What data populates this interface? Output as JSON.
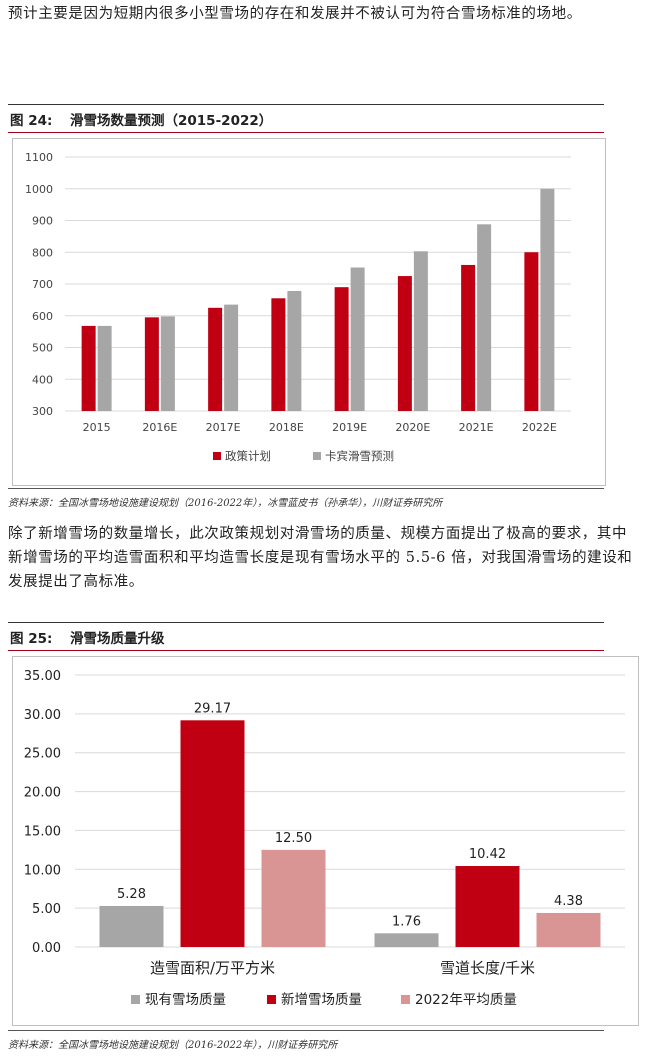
{
  "intro_text": "预计主要是因为短期内很多小型雪场的存在和发展并不被认可为符合雪场标准的场地。",
  "figure24": {
    "label": "图 24:",
    "title": "滑雪场数量预测（2015-2022）",
    "source": "资料来源：全国冰雪场地设施建设规划（2016-2022年），冰雪蓝皮书（孙承华），川财证券研究所",
    "chart_data": {
      "type": "bar",
      "categories": [
        "2015",
        "2016E",
        "2017E",
        "2018E",
        "2019E",
        "2020E",
        "2021E",
        "2022E"
      ],
      "series": [
        {
          "name": "政策计划",
          "values": [
            568,
            595,
            625,
            655,
            690,
            725,
            760,
            800
          ]
        },
        {
          "name": "卡宾滑雪预测",
          "values": [
            568,
            598,
            635,
            678,
            752,
            803,
            888,
            1000
          ]
        }
      ],
      "yticks": [
        "300",
        "400",
        "500",
        "600",
        "700",
        "800",
        "900",
        "1000",
        "1100"
      ],
      "ylim": [
        300,
        1100
      ],
      "grid": true,
      "legend_position": "bottom"
    }
  },
  "middle_text": "除了新增雪场的数量增长，此次政策规划对滑雪场的质量、规模方面提出了极高的要求，其中新增雪场的平均造雪面积和平均造雪长度是现有雪场水平的 5.5-6 倍，对我国滑雪场的建设和发展提出了高标准。",
  "figure25": {
    "label": "图 25:",
    "title": "滑雪场质量升级",
    "source": "资料来源：全国冰雪场地设施建设规划（2016-2022年），川财证券研究所",
    "chart_data": {
      "type": "bar",
      "categories": [
        "造雪面积/万平方米",
        "雪道长度/千米"
      ],
      "series": [
        {
          "name": "现有雪场质量",
          "values": [
            5.28,
            1.76
          ],
          "labels": [
            "5.28",
            "1.76"
          ]
        },
        {
          "name": "新增雪场质量",
          "values": [
            29.17,
            10.42
          ],
          "labels": [
            "29.17",
            "10.42"
          ]
        },
        {
          "name": "2022年平均质量",
          "values": [
            12.5,
            4.38
          ],
          "labels": [
            "12.50",
            "4.38"
          ]
        }
      ],
      "yticks": [
        "0.00",
        "5.00",
        "10.00",
        "15.00",
        "20.00",
        "25.00",
        "30.00",
        "35.00"
      ],
      "ylim": [
        0,
        35
      ],
      "grid": true,
      "legend_position": "bottom"
    }
  },
  "colors": {
    "red": "#c00012",
    "gray": "#a6a6a6",
    "pink": "#d99594",
    "rule_red": "#a8001a"
  }
}
